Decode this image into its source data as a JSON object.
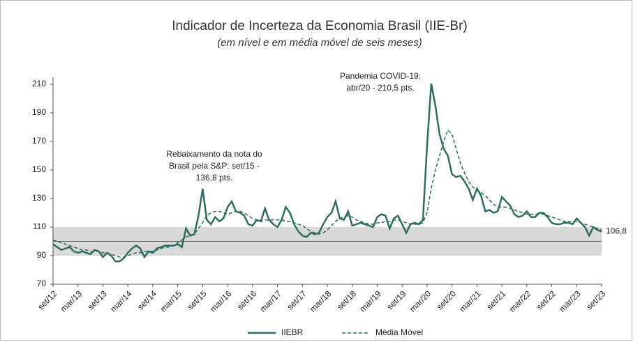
{
  "chart_data": {
    "type": "line",
    "title": "Indicador de Incerteza da Economia Brasil (IIE-Br)",
    "subtitle": "(em nível e em média móvel de seis meses)",
    "categories": [
      "set/12",
      null,
      null,
      null,
      null,
      null,
      "mar/13",
      null,
      null,
      null,
      null,
      null,
      "set/13",
      null,
      null,
      null,
      null,
      null,
      "mar/14",
      null,
      null,
      null,
      null,
      null,
      "set/14",
      null,
      null,
      null,
      null,
      null,
      "mar/15",
      null,
      null,
      null,
      null,
      null,
      "set/15",
      null,
      null,
      null,
      null,
      null,
      "mar/16",
      null,
      null,
      null,
      null,
      null,
      "set/16",
      null,
      null,
      null,
      null,
      null,
      "mar/17",
      null,
      null,
      null,
      null,
      null,
      "set/17",
      null,
      null,
      null,
      null,
      null,
      "mar/18",
      null,
      null,
      null,
      null,
      null,
      "set/18",
      null,
      null,
      null,
      null,
      null,
      "mar/19",
      null,
      null,
      null,
      null,
      null,
      "set/19",
      null,
      null,
      null,
      null,
      null,
      "mar/20",
      null,
      null,
      null,
      null,
      null,
      "set/20",
      null,
      null,
      null,
      null,
      null,
      "mar/21",
      null,
      null,
      null,
      null,
      null,
      "set/21",
      null,
      null,
      null,
      null,
      null,
      "mar/22",
      null,
      null,
      null,
      null,
      null,
      "set/22",
      null,
      null,
      null,
      null,
      null,
      "mar/23",
      null,
      null,
      null,
      null,
      null,
      "set/23"
    ],
    "series": [
      {
        "name": "IIEBR",
        "color": "#2f6b5f",
        "dash": false,
        "values": [
          98,
          96,
          94,
          95,
          96,
          93,
          92,
          93,
          92,
          91,
          94,
          93,
          89,
          92,
          90,
          86,
          86,
          88,
          92,
          95,
          97,
          95,
          89,
          93,
          92,
          95,
          96,
          97,
          97,
          97,
          98,
          96,
          109,
          104,
          105,
          118,
          136.8,
          115,
          112,
          117,
          114,
          116,
          124,
          128,
          121,
          120,
          118,
          112,
          111,
          115,
          114,
          123,
          115,
          112,
          110,
          115,
          124,
          120,
          112,
          107,
          104,
          103,
          106,
          105,
          106,
          112,
          117,
          120,
          128,
          116,
          115,
          121,
          111,
          112,
          113,
          112,
          111,
          110,
          117,
          119,
          118,
          109,
          116,
          118,
          112,
          106,
          112,
          113,
          112,
          115,
          167,
          210.5,
          195,
          175,
          165,
          160,
          147,
          145,
          146,
          142,
          137,
          129,
          137,
          132,
          121,
          122,
          120,
          121,
          131,
          128,
          125,
          119,
          117,
          118,
          121,
          117,
          117,
          120,
          120,
          117,
          113,
          112,
          112,
          113,
          113,
          112,
          116,
          113,
          110,
          104,
          110,
          108,
          106.8
        ],
        "end_label": {
          "value": 106.8,
          "label": "106,8"
        }
      },
      {
        "name": "Média Móvel",
        "color": "#2f6b5f",
        "dash": true,
        "values": [
          101,
          100,
          99,
          98,
          97,
          96,
          95,
          94,
          94,
          93,
          93,
          93,
          92,
          92,
          91,
          90,
          89,
          89,
          90,
          91,
          92,
          92,
          93,
          93,
          93,
          94,
          95,
          96,
          96,
          97,
          99,
          101,
          103,
          104,
          105,
          109,
          113,
          118,
          120,
          121,
          121,
          120,
          119,
          120,
          121,
          121,
          120,
          118,
          116,
          115,
          114,
          115,
          115,
          115,
          115,
          115,
          114,
          114,
          113,
          112,
          111,
          109,
          107,
          106,
          105,
          106,
          108,
          111,
          114,
          116,
          117,
          118,
          117,
          115,
          114,
          113,
          112,
          112,
          113,
          113,
          114,
          114,
          115,
          115,
          114,
          113,
          112,
          112,
          112,
          113,
          120,
          137,
          150,
          160,
          170,
          178,
          175,
          165,
          155,
          148,
          142,
          138,
          136,
          134,
          132,
          129,
          126,
          124,
          124,
          124,
          123,
          122,
          121,
          120,
          119,
          119,
          119,
          119,
          119,
          118,
          117,
          116,
          115,
          114,
          114,
          114,
          114,
          113,
          112,
          111,
          110,
          109,
          108
        ]
      }
    ],
    "band": [
      90,
      110
    ],
    "reference_line": 100,
    "ylim": [
      70,
      210
    ],
    "yticks": [
      70,
      90,
      110,
      130,
      150,
      170,
      190,
      210
    ],
    "annotations": [
      {
        "lines": [
          "Rebaixamento da nota do",
          "Brasil pela S&P: set/15 -",
          "136,8 pts."
        ]
      },
      {
        "lines": [
          "Pandemia COVID-19:",
          "abr/20 - 210,5 pts."
        ]
      }
    ],
    "legend": "bottom"
  }
}
